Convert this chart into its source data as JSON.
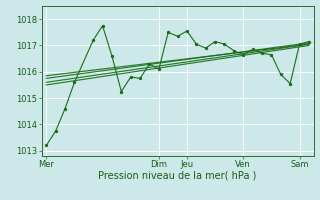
{
  "background_color": "#cce8e8",
  "grid_color": "#ffffff",
  "line_color": "#1a6e1a",
  "x_ticks_labels": [
    "Mer",
    "Dim",
    "Jeu",
    "Ven",
    "Sam"
  ],
  "x_ticks_pos": [
    0,
    12,
    15,
    21,
    27
  ],
  "xlabel": "Pression niveau de la mer( hPa )",
  "ylim": [
    1012.8,
    1018.5
  ],
  "yticks": [
    1013,
    1014,
    1015,
    1016,
    1017,
    1018
  ],
  "series_main": [
    [
      0,
      1013.2
    ],
    [
      1,
      1013.75
    ],
    [
      2,
      1014.6
    ],
    [
      3,
      1015.6
    ],
    [
      5,
      1017.2
    ],
    [
      6,
      1017.75
    ],
    [
      7,
      1016.6
    ],
    [
      8,
      1015.25
    ],
    [
      9,
      1015.8
    ],
    [
      10,
      1015.75
    ],
    [
      11,
      1016.3
    ],
    [
      12,
      1016.1
    ],
    [
      13,
      1017.5
    ],
    [
      14,
      1017.35
    ],
    [
      15,
      1017.55
    ],
    [
      16,
      1017.05
    ],
    [
      17,
      1016.9
    ],
    [
      18,
      1017.15
    ],
    [
      19,
      1017.05
    ],
    [
      20,
      1016.8
    ],
    [
      21,
      1016.65
    ],
    [
      22,
      1016.85
    ],
    [
      23,
      1016.7
    ],
    [
      24,
      1016.65
    ],
    [
      25,
      1015.9
    ],
    [
      26,
      1015.55
    ],
    [
      27,
      1017.05
    ],
    [
      28,
      1017.15
    ]
  ],
  "trend_lines": [
    [
      [
        0,
        1015.5
      ],
      [
        28,
        1017.0
      ]
    ],
    [
      [
        0,
        1015.6
      ],
      [
        28,
        1017.05
      ]
    ],
    [
      [
        0,
        1015.75
      ],
      [
        28,
        1017.1
      ]
    ],
    [
      [
        0,
        1015.85
      ],
      [
        28,
        1017.05
      ]
    ]
  ],
  "vlines_pos": [
    12,
    15,
    21,
    27
  ],
  "vline_color": "#444444",
  "xlabel_fontsize": 7,
  "tick_fontsize": 6
}
